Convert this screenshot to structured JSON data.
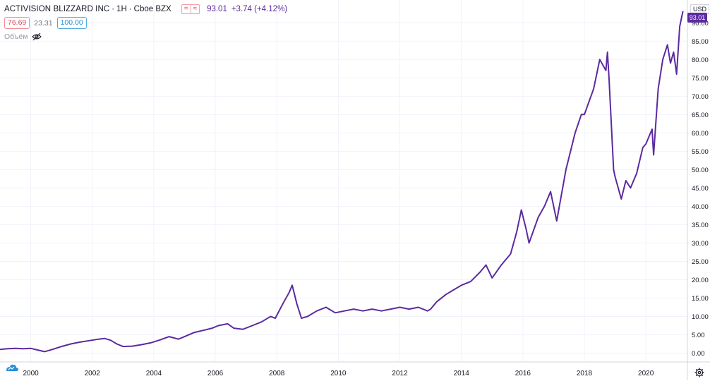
{
  "header": {
    "symbol": "ACTIVISION BLIZZARD INC",
    "interval": "1Н",
    "exchange": "Cboe BZX",
    "badge_left": "=",
    "badge_right": "≈",
    "last_price": "93.01",
    "change": "+3.74 (+4.12%)"
  },
  "indicators": {
    "box1": "76.69",
    "mid": "23.31",
    "box2": "100.00"
  },
  "volume_label": "Объём",
  "axis": {
    "currency": "USD",
    "last_price_tag": "93.01"
  },
  "icons": {
    "visibility": "eye-off-icon",
    "settings": "gear-icon",
    "logo": "cloud-logo-icon"
  },
  "colors": {
    "line": "#5b2aa0",
    "grid": "#f0f3fa",
    "price_tag_bg": "#5b2aa0",
    "axis_text": "#131722"
  },
  "chart_data": {
    "type": "line",
    "title": "ACTIVISION BLIZZARD INC · 1Н · Cboe BZX",
    "xlabel": "",
    "ylabel": "",
    "x_unit": "year",
    "xlim": [
      1999.0,
      2021.35
    ],
    "ylim": [
      -2.4,
      96.2
    ],
    "grid": true,
    "legend": "none",
    "y_ticks": [
      "0.00",
      "5.00",
      "10.00",
      "15.00",
      "20.00",
      "25.00",
      "30.00",
      "35.00",
      "40.00",
      "45.00",
      "50.00",
      "55.00",
      "60.00",
      "65.00",
      "70.00",
      "75.00",
      "80.00",
      "85.00",
      "90.00"
    ],
    "x_ticks": [
      "2000",
      "2002",
      "2004",
      "2006",
      "2008",
      "2010",
      "2012",
      "2014",
      "2016",
      "2018",
      "2020"
    ],
    "series": [
      {
        "x": [
          1999.0,
          1999.25,
          1999.5,
          1999.75,
          2000.0,
          2000.25,
          2000.45,
          2000.7,
          2001.0,
          2001.3,
          2001.6,
          2001.9,
          2002.2,
          2002.4,
          2002.6,
          2002.8,
          2003.0,
          2003.3,
          2003.6,
          2003.9,
          2004.2,
          2004.5,
          2004.8,
          2005.0,
          2005.3,
          2005.6,
          2005.9,
          2006.1,
          2006.4,
          2006.6,
          2006.9,
          2007.2,
          2007.5,
          2007.8,
          2007.95,
          2008.2,
          2008.4,
          2008.5,
          2008.65,
          2008.8,
          2009.0,
          2009.3,
          2009.6,
          2009.9,
          2010.2,
          2010.5,
          2010.8,
          2011.1,
          2011.4,
          2011.7,
          2012.0,
          2012.3,
          2012.6,
          2012.9,
          2013.0,
          2013.2,
          2013.5,
          2013.8,
          2014.0,
          2014.3,
          2014.6,
          2014.8,
          2015.0,
          2015.3,
          2015.6,
          2015.8,
          2015.95,
          2016.1,
          2016.2,
          2016.5,
          2016.7,
          2016.9,
          2017.1,
          2017.4,
          2017.7,
          2017.9,
          2018.0,
          2018.3,
          2018.5,
          2018.7,
          2018.75,
          2018.8,
          2018.95,
          2019.0,
          2019.2,
          2019.35,
          2019.5,
          2019.7,
          2019.9,
          2020.0,
          2020.2,
          2020.25,
          2020.4,
          2020.55,
          2020.7,
          2020.8,
          2020.9,
          2021.0,
          2021.1,
          2021.2
        ],
        "y": [
          1.0,
          1.2,
          1.3,
          1.2,
          1.3,
          0.8,
          0.4,
          1.0,
          1.8,
          2.5,
          3.0,
          3.4,
          3.8,
          4.0,
          3.5,
          2.5,
          1.8,
          1.9,
          2.3,
          2.8,
          3.6,
          4.5,
          3.8,
          4.5,
          5.6,
          6.2,
          6.8,
          7.5,
          8.0,
          6.8,
          6.5,
          7.5,
          8.5,
          10.0,
          9.5,
          13.5,
          16.5,
          18.5,
          13.5,
          9.5,
          10.0,
          11.5,
          12.5,
          11.0,
          11.5,
          12.0,
          11.5,
          12.0,
          11.5,
          12.0,
          12.5,
          12.0,
          12.5,
          11.5,
          12.0,
          14.0,
          16.0,
          17.5,
          18.5,
          19.5,
          22.0,
          24.0,
          20.5,
          24.0,
          27.0,
          33.0,
          39.0,
          34.0,
          30.0,
          37.0,
          40.0,
          44.0,
          36.0,
          50.0,
          60.0,
          65.0,
          65.0,
          72.0,
          80.0,
          77.0,
          82.0,
          75.0,
          50.0,
          48.0,
          42.0,
          47.0,
          45.0,
          49.0,
          56.0,
          57.0,
          61.0,
          54.0,
          72.0,
          80.0,
          84.0,
          79.0,
          82.0,
          76.0,
          89.0,
          93.0
        ]
      }
    ]
  }
}
